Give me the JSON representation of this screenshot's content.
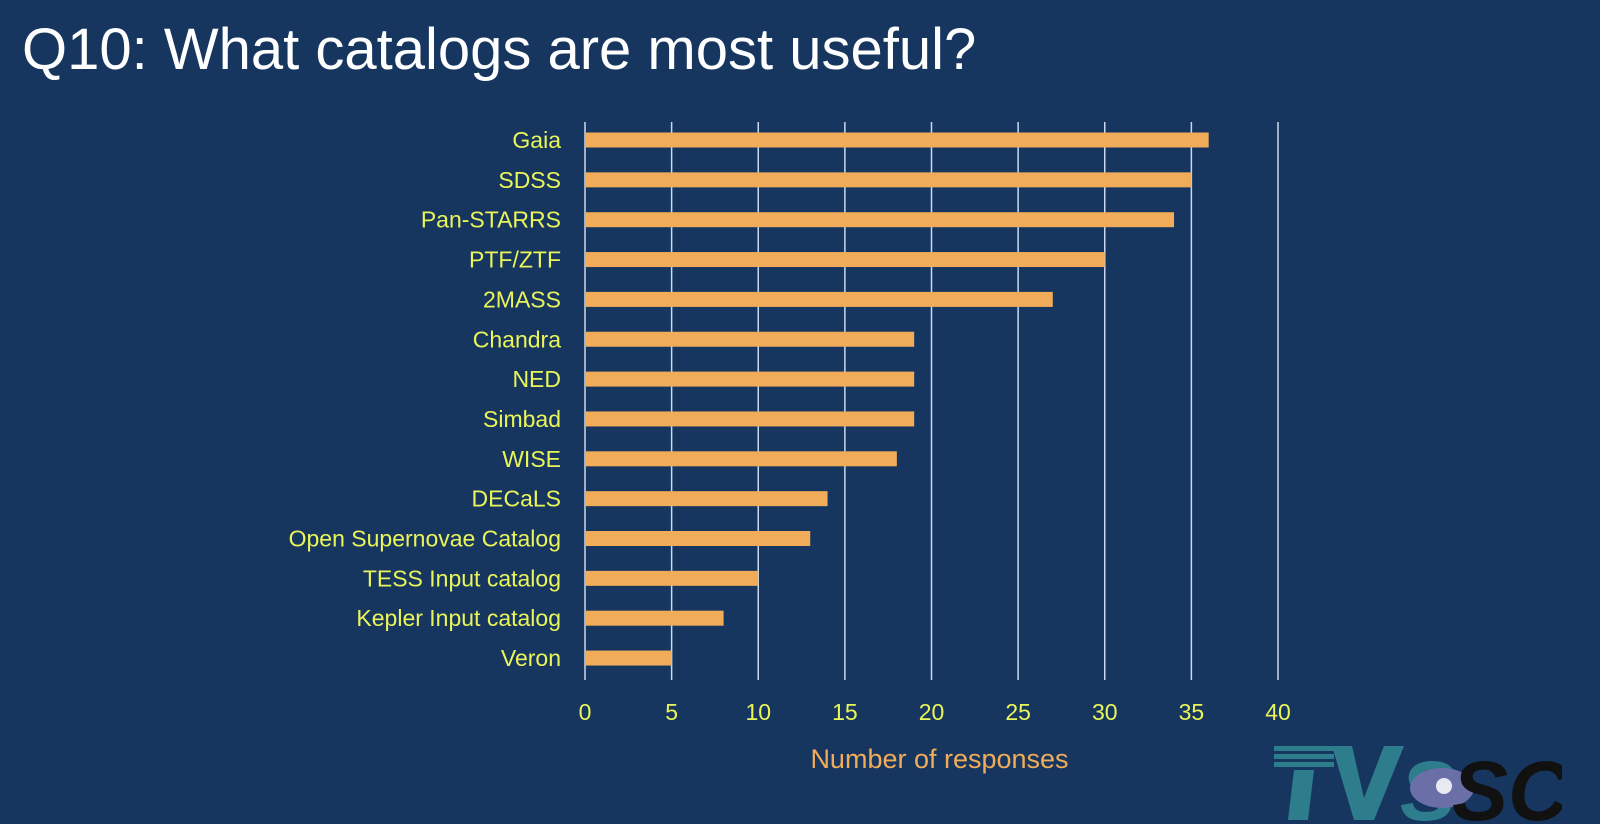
{
  "title": "Q10: What catalogs are most useful?",
  "chart_data": {
    "type": "bar",
    "orientation": "horizontal",
    "title": "Q10: What catalogs are most useful?",
    "categories": [
      "Gaia",
      "SDSS",
      "Pan-STARRS",
      "PTF/ZTF",
      "2MASS",
      "Chandra",
      "NED",
      "Simbad",
      "WISE",
      "DECaLS",
      "Open Supernovae Catalog",
      "TESS Input catalog",
      "Kepler Input catalog",
      "Veron"
    ],
    "values": [
      36,
      35,
      34,
      30,
      27,
      19,
      19,
      19,
      18,
      14,
      13,
      10,
      8,
      5
    ],
    "xlabel": "Number of responses",
    "ylabel": "",
    "xlim": [
      0,
      40
    ],
    "xticks": [
      0,
      5,
      10,
      15,
      20,
      25,
      30,
      35,
      40
    ],
    "grid": "vertical",
    "colors": {
      "bar": "#f0ac58",
      "label": "#eaf55a",
      "xlabel": "#f0ac58",
      "grid": "#c8d8ee",
      "background": "#16365f",
      "title": "#ffffff"
    }
  },
  "logo": {
    "text": "TVSSC"
  }
}
